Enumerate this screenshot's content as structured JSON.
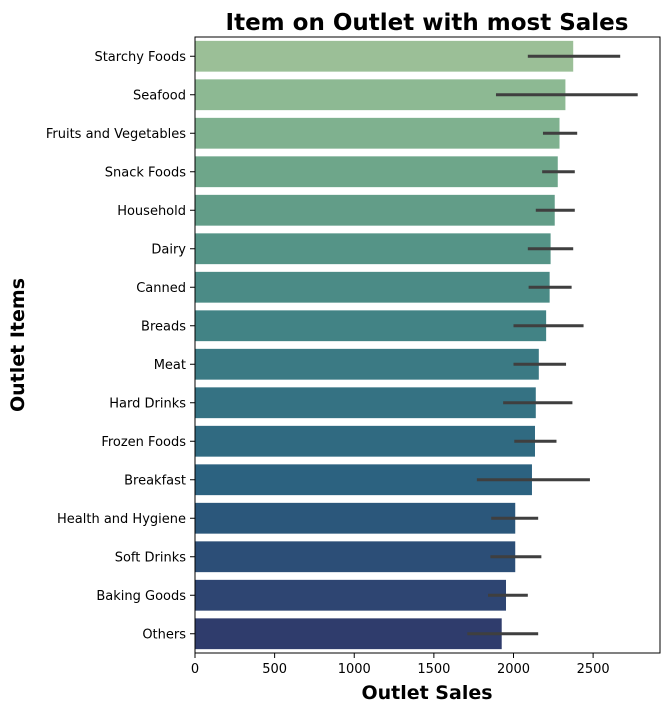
{
  "chart_data": {
    "type": "bar",
    "orientation": "horizontal",
    "title": "Item on Outlet with most Sales",
    "xlabel": "Outlet Sales",
    "ylabel": "Outlet Items",
    "xlim": [
      0,
      2920
    ],
    "xticks": [
      "0",
      "500",
      "1000",
      "1500",
      "2000",
      "2500"
    ],
    "grid": false,
    "categories": [
      "Starchy Foods",
      "Seafood",
      "Fruits and Vegetables",
      "Snack Foods",
      "Household",
      "Dairy",
      "Canned",
      "Breads",
      "Meat",
      "Hard Drinks",
      "Frozen Foods",
      "Breakfast",
      "Health and Hygiene",
      "Soft Drinks",
      "Baking Goods",
      "Others"
    ],
    "values": [
      2375,
      2326,
      2289,
      2278,
      2259,
      2233,
      2227,
      2205,
      2159,
      2140,
      2135,
      2116,
      2011,
      2011,
      1953,
      1926
    ],
    "error_low": [
      2090,
      1890,
      2185,
      2180,
      2140,
      2090,
      2095,
      2000,
      2000,
      1935,
      2005,
      1770,
      1860,
      1855,
      1840,
      1710
    ],
    "error_high": [
      2670,
      2780,
      2400,
      2385,
      2385,
      2375,
      2365,
      2440,
      2330,
      2370,
      2270,
      2480,
      2155,
      2175,
      2090,
      2155
    ],
    "colors": [
      "#9bbf97",
      "#8db993",
      "#7fb18f",
      "#6ea68a",
      "#629d88",
      "#559487",
      "#4b8b86",
      "#428385",
      "#3b7a84",
      "#357283",
      "#306a81",
      "#2c6280",
      "#2b577b",
      "#2c4e77",
      "#2e4572",
      "#2f3c6c"
    ],
    "error_color": "#3f3f3f"
  }
}
